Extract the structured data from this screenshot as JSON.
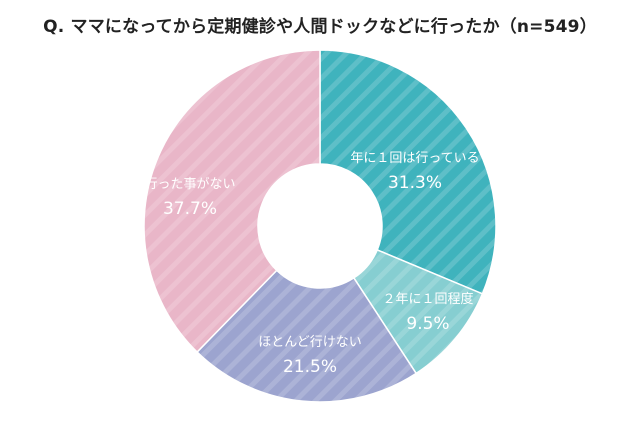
{
  "title": "Q. ママになってから定期健診や人間ドックなどに行ったか（n=549）",
  "chart_data": {
    "type": "pie",
    "donut": true,
    "title": "Q. ママになってから定期健診や人間ドックなどに行ったか（n=549）",
    "n": 549,
    "slices": [
      {
        "label": "年に１回は行っている",
        "value": 31.3,
        "value_label": "31.3%",
        "color": "#3fb3bd"
      },
      {
        "label": "２年に１回程度",
        "value": 9.5,
        "value_label": "9.5%",
        "color": "#86ced1"
      },
      {
        "label": "ほとんど行けない",
        "value": 21.5,
        "value_label": "21.5%",
        "color": "#9ca4cf"
      },
      {
        "label": "行った事がない",
        "value": 37.7,
        "value_label": "37.7%",
        "color": "#e9b6c8"
      }
    ]
  }
}
